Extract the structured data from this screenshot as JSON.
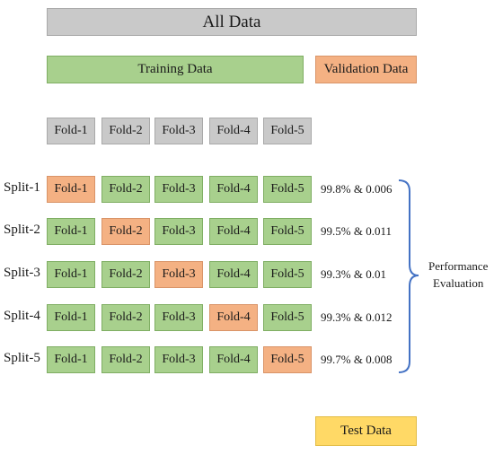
{
  "all_data": "All Data",
  "training_data": "Training Data",
  "validation_data": "Validation Data",
  "test_data": "Test Data",
  "performance_evaluation": [
    "Performance",
    "Evaluation"
  ],
  "folds": [
    "Fold-1",
    "Fold-2",
    "Fold-3",
    "Fold-4",
    "Fold-5"
  ],
  "splits": [
    {
      "label": "Split-1",
      "validation_fold": 1,
      "result": "99.8% & 0.006"
    },
    {
      "label": "Split-2",
      "validation_fold": 2,
      "result": "99.5% & 0.011"
    },
    {
      "label": "Split-3",
      "validation_fold": 3,
      "result": "99.3% & 0.01"
    },
    {
      "label": "Split-4",
      "validation_fold": 4,
      "result": "99.3% & 0.012"
    },
    {
      "label": "Split-5",
      "validation_fold": 5,
      "result": "99.7% & 0.008"
    }
  ],
  "colors": {
    "header_gray": "#c9c9c9",
    "training_green": "#a8d08d",
    "validation_orange": "#f4b183",
    "test_yellow": "#ffd966",
    "bracket_blue": "#4472c4"
  }
}
